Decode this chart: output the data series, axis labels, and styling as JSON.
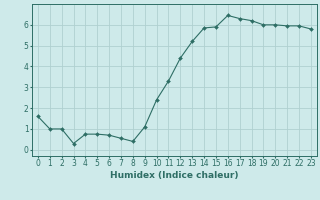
{
  "x": [
    0,
    1,
    2,
    3,
    4,
    5,
    6,
    7,
    8,
    9,
    10,
    11,
    12,
    13,
    14,
    15,
    16,
    17,
    18,
    19,
    20,
    21,
    22,
    23
  ],
  "y": [
    1.6,
    1.0,
    1.0,
    0.3,
    0.75,
    0.75,
    0.7,
    0.55,
    0.4,
    1.1,
    2.4,
    3.3,
    4.4,
    5.2,
    5.85,
    5.9,
    6.45,
    6.3,
    6.2,
    6.0,
    6.0,
    5.95,
    5.95,
    5.8
  ],
  "line_color": "#2e6e65",
  "marker": "D",
  "marker_size": 2.0,
  "bg_color": "#ceeaea",
  "grid_color": "#b0d0d0",
  "xlabel": "Humidex (Indice chaleur)",
  "xlim": [
    -0.5,
    23.5
  ],
  "ylim": [
    -0.3,
    7.0
  ],
  "yticks": [
    0,
    1,
    2,
    3,
    4,
    5,
    6
  ],
  "xticks": [
    0,
    1,
    2,
    3,
    4,
    5,
    6,
    7,
    8,
    9,
    10,
    11,
    12,
    13,
    14,
    15,
    16,
    17,
    18,
    19,
    20,
    21,
    22,
    23
  ],
  "tick_fontsize": 5.5,
  "xlabel_fontsize": 6.5
}
